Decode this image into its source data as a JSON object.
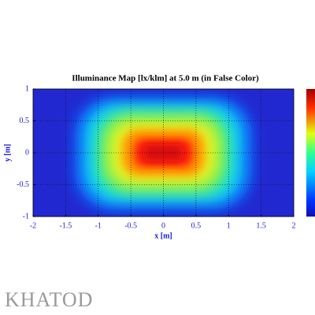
{
  "chart_data": {
    "type": "heatmap",
    "title": "Illuminance Map [lx/klm] at 5.0 m (in False Color)",
    "xlabel": "x [m]",
    "ylabel": "y [m]",
    "xlim": [
      -2,
      2
    ],
    "ylim": [
      -1,
      1
    ],
    "xticks": [
      -2,
      -1.5,
      -1,
      -0.5,
      0,
      0.5,
      1,
      1.5,
      2
    ],
    "yticks": [
      -1,
      -0.5,
      0,
      0.5,
      1
    ],
    "grid": true,
    "colorbar": true
  },
  "logo": "KHATOD"
}
